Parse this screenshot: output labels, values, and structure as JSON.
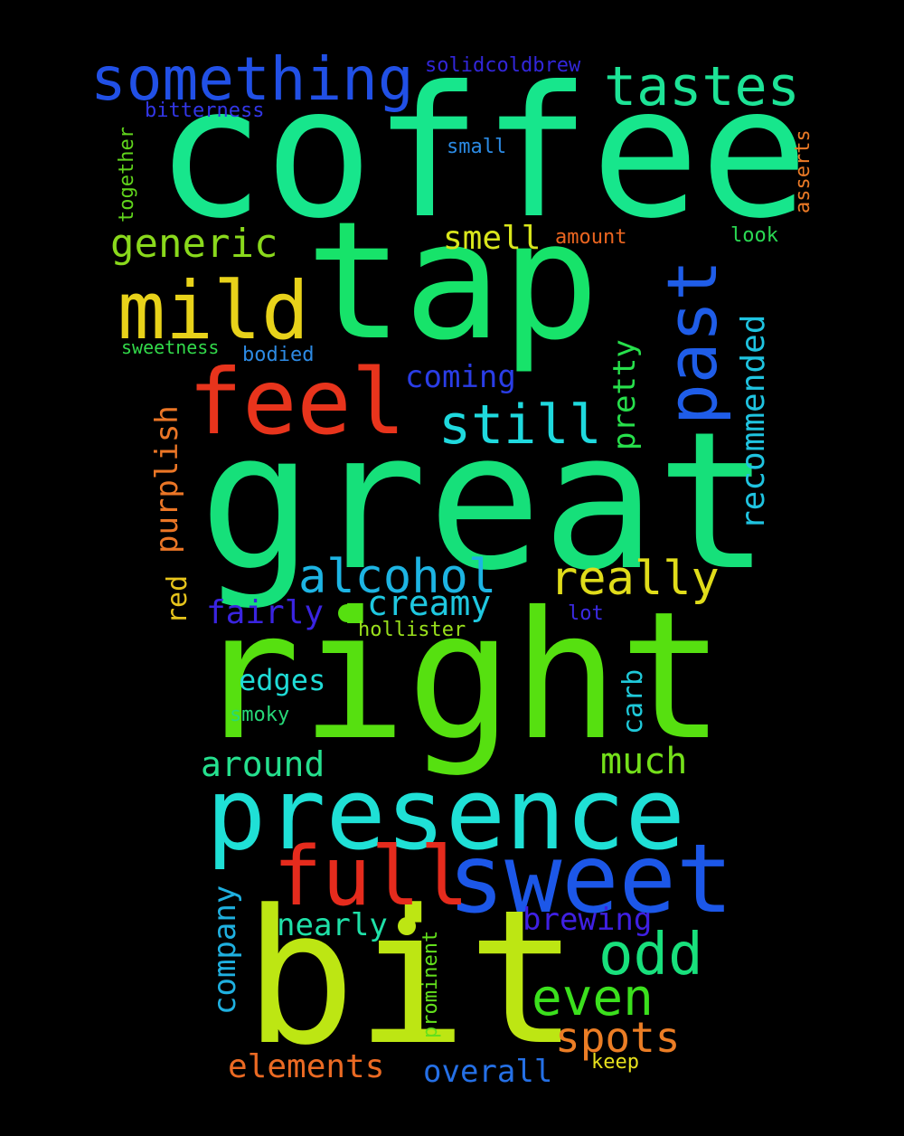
{
  "words": [
    {
      "text": "coffee",
      "color": "#17e68c"
    },
    {
      "text": "tap",
      "color": "#17e36a"
    },
    {
      "text": "great",
      "color": "#16e07a"
    },
    {
      "text": "right",
      "color": "#56e010"
    },
    {
      "text": "bit",
      "color": "#bde613"
    },
    {
      "text": "presence",
      "color": "#1fe0d6"
    },
    {
      "text": "sweet",
      "color": "#1c57e8"
    },
    {
      "text": "full",
      "color": "#e52b1d"
    },
    {
      "text": "feel",
      "color": "#e8341c"
    },
    {
      "text": "mild",
      "color": "#e8d21a"
    },
    {
      "text": "past",
      "color": "#1f5de8"
    },
    {
      "text": "something",
      "color": "#2150e6"
    },
    {
      "text": "tastes",
      "color": "#1de396"
    },
    {
      "text": "generic",
      "color": "#8ad91c"
    },
    {
      "text": "still",
      "color": "#1fd9de"
    },
    {
      "text": "alcohol",
      "color": "#1db4e3"
    },
    {
      "text": "really",
      "color": "#e0dc1a"
    },
    {
      "text": "odd",
      "color": "#18e07c"
    },
    {
      "text": "even",
      "color": "#3be01d"
    },
    {
      "text": "spots",
      "color": "#eb7d25"
    },
    {
      "text": "much",
      "color": "#74e01a"
    },
    {
      "text": "around",
      "color": "#25e08e"
    },
    {
      "text": "creamy",
      "color": "#1fc8e0"
    },
    {
      "text": "coming",
      "color": "#2a3de6"
    },
    {
      "text": "smell",
      "color": "#d9e61c"
    },
    {
      "text": "fairly",
      "color": "#3a24e0"
    },
    {
      "text": "edges",
      "color": "#1fdbd6"
    },
    {
      "text": "nearly",
      "color": "#1fe0a8"
    },
    {
      "text": "brewing",
      "color": "#3f20e3"
    },
    {
      "text": "elements",
      "color": "#eb6a23"
    },
    {
      "text": "overall",
      "color": "#2570e6"
    },
    {
      "text": "recommended",
      "color": "#1fc3e0"
    },
    {
      "text": "purplish",
      "color": "#eb7626"
    },
    {
      "text": "pretty",
      "color": "#27e04c"
    },
    {
      "text": "company",
      "color": "#1fb0e0"
    },
    {
      "text": "carb",
      "color": "#1fc8d9"
    },
    {
      "text": "red",
      "color": "#e6c41c"
    },
    {
      "text": "prominent",
      "color": "#63e01c"
    },
    {
      "text": "solidcoldbrew",
      "color": "#3226d9"
    },
    {
      "text": "bitterness",
      "color": "#3236e6"
    },
    {
      "text": "small",
      "color": "#2b8ae3"
    },
    {
      "text": "together",
      "color": "#60d41c"
    },
    {
      "text": "asserts",
      "color": "#eb7a26"
    },
    {
      "text": "amount",
      "color": "#eb6520"
    },
    {
      "text": "look",
      "color": "#2ad953"
    },
    {
      "text": "sweetness",
      "color": "#32d94a"
    },
    {
      "text": "bodied",
      "color": "#2d8ae3"
    },
    {
      "text": "hollister",
      "color": "#9ae01c"
    },
    {
      "text": "lot",
      "color": "#3b2ae3"
    },
    {
      "text": "smoky",
      "color": "#27d978"
    },
    {
      "text": "keep",
      "color": "#e6e01c"
    }
  ]
}
